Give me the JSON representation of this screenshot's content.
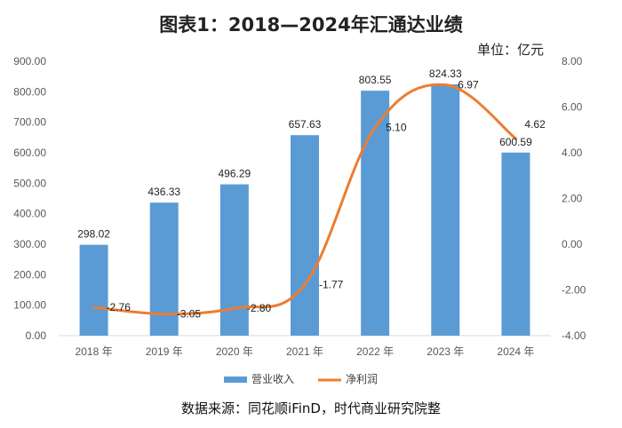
{
  "chart_data": {
    "type": "bar",
    "title": "图表1：2018—2024年汇通达业绩",
    "unit_label": "单位：亿元",
    "source": "数据来源：同花顺iFinD，时代商业研究院整",
    "categories": [
      "2018 年",
      "2019 年",
      "2020 年",
      "2021 年",
      "2022 年",
      "2023 年",
      "2024 年"
    ],
    "series": [
      {
        "name": "营业收入",
        "type": "bar",
        "axis": "left",
        "color": "#5B9BD5",
        "values": [
          298.02,
          436.33,
          496.29,
          657.63,
          803.55,
          824.33,
          600.59
        ],
        "labels": [
          "298.02",
          "436.33",
          "496.29",
          "657.63",
          "803.55",
          "824.33",
          "600.59"
        ]
      },
      {
        "name": "净利润",
        "type": "line",
        "axis": "right",
        "color": "#ED7D31",
        "values": [
          -2.76,
          -3.05,
          -2.8,
          -1.77,
          5.1,
          6.97,
          4.62
        ],
        "labels": [
          "-2.76",
          "-3.05",
          "-2.80",
          "-1.77",
          "5.10",
          "6.97",
          "4.62"
        ]
      }
    ],
    "y_left": {
      "min": 0,
      "max": 900,
      "ticks": [
        "0.00",
        "100.00",
        "200.00",
        "300.00",
        "400.00",
        "500.00",
        "600.00",
        "700.00",
        "800.00",
        "900.00"
      ]
    },
    "y_right": {
      "min": -4,
      "max": 8,
      "ticks": [
        "-4.00",
        "-2.00",
        "0.00",
        "2.00",
        "4.00",
        "6.00",
        "8.00"
      ]
    },
    "legend": "bottom"
  }
}
